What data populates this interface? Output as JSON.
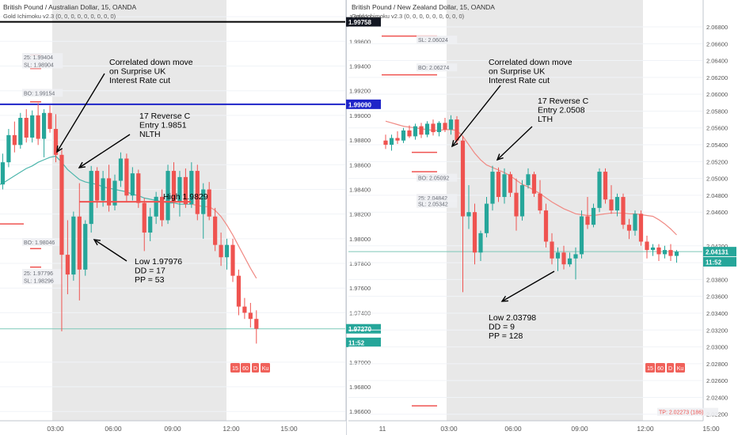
{
  "colors": {
    "up": "#26a69a",
    "down": "#ef5350",
    "session_shade": "#e0e0e0",
    "ma_left": "#4db6ac",
    "ma_right": "#f08a84",
    "blue_line": "#1e24c8",
    "black_line": "#000000",
    "price_line": "#7dc8b8",
    "grid": "#f0f3f7",
    "axis_text": "#555555",
    "annotation": "#000000",
    "tv_badge": "#f0615a"
  },
  "tv_buttons": [
    "15",
    "60",
    "D",
    "Ku"
  ],
  "chart_data": [
    {
      "type": "candlestick",
      "title": "British Pound / Australian Dollar, 15, OANDA",
      "indicator_label": "Gold Ichimoku v2.3 (0, 0, 0, 0, 0, 0, 0, 0, 0)",
      "x_ticks": [
        "03:00",
        "06:00",
        "09:00",
        "12:00",
        "15:00"
      ],
      "y_ticks": [
        "1.96600",
        "1.96800",
        "1.97000",
        "1.97400",
        "1.97600",
        "1.97800",
        "1.98000",
        "1.98200",
        "1.98400",
        "1.98600",
        "1.98800",
        "1.99000",
        "1.99200",
        "1.99400",
        "1.99600",
        "1.99800"
      ],
      "ylim": [
        1.9655,
        1.9982
      ],
      "price_tags": [
        {
          "value": 1.99758,
          "label": "1.99758",
          "style": "dark"
        },
        {
          "value": 1.9909,
          "label": "1.99090",
          "style": "blue"
        },
        {
          "value": 1.9727,
          "label": "1.97270",
          "style": "green"
        },
        {
          "value": 1.9716,
          "label": "11:52",
          "style": "green"
        }
      ],
      "hlines": [
        {
          "value": 1.99758,
          "style": "black"
        },
        {
          "value": 1.9909,
          "style": "blue"
        },
        {
          "value": 1.9727,
          "style": "price"
        }
      ],
      "small_labels": [
        {
          "text": "25: 1.99404",
          "value": 1.9946
        },
        {
          "text": "SL: 1.98904",
          "value": 1.994
        },
        {
          "text": "BO: 1.99154",
          "value": 1.9917
        },
        {
          "text": "BO: 1.98046",
          "value": 1.9796
        },
        {
          "text": "25: 1.97796",
          "value": 1.9771
        },
        {
          "text": "SL: 1.98296",
          "value": 1.9765
        }
      ],
      "red_ticks": [
        1.9949,
        1.9938,
        1.9911,
        1.9812,
        1.9792,
        1.9777
      ],
      "entry_line": {
        "value": 1.983,
        "x_start": 18,
        "x_end": 42
      },
      "annotations": [
        "Correlated down move\non Surprise UK\nInterest Rate cut",
        "17 Reverse C\nEntry 1.9851\nNLTH",
        "High 1.9829",
        "Low 1.97976\nDD = 17\nPP = 53"
      ],
      "candles": [
        [
          1.9852,
          1.9858,
          1.9835,
          1.9844
        ],
        [
          1.9844,
          1.9869,
          1.984,
          1.9862
        ],
        [
          1.9862,
          1.9889,
          1.9858,
          1.9884
        ],
        [
          1.9884,
          1.9895,
          1.987,
          1.9876
        ],
        [
          1.9876,
          1.9902,
          1.9873,
          1.9898
        ],
        [
          1.9898,
          1.9905,
          1.9878,
          1.9882
        ],
        [
          1.9882,
          1.9904,
          1.9878,
          1.99
        ],
        [
          1.99,
          1.991,
          1.9876,
          1.9881
        ],
        [
          1.9881,
          1.9905,
          1.9866,
          1.9902
        ],
        [
          1.9902,
          1.9908,
          1.9886,
          1.9889
        ],
        [
          1.9889,
          1.9901,
          1.9862,
          1.9868
        ],
        [
          1.9868,
          1.9872,
          1.9725,
          1.9787
        ],
        [
          1.9787,
          1.9815,
          1.9755,
          1.9771
        ],
        [
          1.9771,
          1.9822,
          1.9766,
          1.9818
        ],
        [
          1.9818,
          1.9845,
          1.975,
          1.9775
        ],
        [
          1.9775,
          1.9815,
          1.977,
          1.9812
        ],
        [
          1.9812,
          1.9859,
          1.9805,
          1.9855
        ],
        [
          1.9855,
          1.9858,
          1.9825,
          1.9831
        ],
        [
          1.9831,
          1.9855,
          1.9826,
          1.9849
        ],
        [
          1.9849,
          1.986,
          1.9822,
          1.9827
        ],
        [
          1.9827,
          1.9852,
          1.9823,
          1.9847
        ],
        [
          1.9847,
          1.987,
          1.9842,
          1.9865
        ],
        [
          1.9865,
          1.9869,
          1.983,
          1.9835
        ],
        [
          1.9835,
          1.9858,
          1.9831,
          1.9853
        ],
        [
          1.9853,
          1.9856,
          1.9825,
          1.9829
        ],
        [
          1.9829,
          1.9833,
          1.979,
          1.9805
        ],
        [
          1.9805,
          1.9825,
          1.9798,
          1.9818
        ],
        [
          1.9818,
          1.9838,
          1.9812,
          1.9834
        ],
        [
          1.9834,
          1.984,
          1.981,
          1.9815
        ],
        [
          1.9815,
          1.986,
          1.9812,
          1.9855
        ],
        [
          1.9855,
          1.9862,
          1.9825,
          1.983
        ],
        [
          1.983,
          1.9855,
          1.9818,
          1.985
        ],
        [
          1.985,
          1.9857,
          1.9825,
          1.9828
        ],
        [
          1.9828,
          1.9862,
          1.9825,
          1.9855
        ],
        [
          1.9855,
          1.986,
          1.9815,
          1.982
        ],
        [
          1.982,
          1.9845,
          1.98,
          1.984
        ],
        [
          1.984,
          1.9846,
          1.9815,
          1.9818
        ],
        [
          1.9818,
          1.9825,
          1.979,
          1.9795
        ],
        [
          1.9795,
          1.9805,
          1.9778,
          1.9785
        ],
        [
          1.9785,
          1.98,
          1.9775,
          1.9795
        ],
        [
          1.9795,
          1.98,
          1.9765,
          1.977
        ],
        [
          1.977,
          1.9775,
          1.9738,
          1.9745
        ],
        [
          1.9745,
          1.9752,
          1.9735,
          1.974
        ],
        [
          1.974,
          1.9748,
          1.9728,
          1.9735
        ],
        [
          1.9735,
          1.9742,
          1.9715,
          1.9727
        ]
      ],
      "ma": [
        1.9843,
        1.9845,
        1.9848,
        1.9851,
        1.9854,
        1.9857,
        1.9859,
        1.9862,
        1.9864,
        1.9866,
        1.9867,
        1.9862,
        1.9856,
        1.9852,
        1.9848,
        1.9846,
        1.9845,
        1.9844,
        1.9842,
        1.9841,
        1.984,
        1.9839,
        1.9838,
        1.9836,
        1.9835,
        1.9833,
        1.9832,
        1.9831,
        1.983,
        1.9829,
        1.9829,
        1.9828,
        1.9828,
        1.9828,
        1.9827,
        1.9826,
        1.9826,
        1.9823,
        1.9818,
        1.9811,
        1.9803,
        1.9794,
        1.9785,
        1.9776,
        1.9768
      ]
    },
    {
      "type": "candlestick",
      "title": "British Pound / New Zealand Dollar, 15, OANDA",
      "indicator_label": "Gold Ichimoku v2.3 (0, 0, 0, 0, 0, 0, 0, 0, 0)",
      "x_ticks": [
        "11",
        "03:00",
        "06:00",
        "09:00",
        "12:00",
        "15:00"
      ],
      "y_ticks": [
        "2.02200",
        "2.02400",
        "2.02600",
        "2.02800",
        "2.03000",
        "2.03200",
        "2.03400",
        "2.03600",
        "2.03800",
        "2.04000",
        "2.04200",
        "2.04600",
        "2.04800",
        "2.05000",
        "2.05200",
        "2.05400",
        "2.05600",
        "2.05800",
        "2.06000",
        "2.06200",
        "2.06400",
        "2.06600",
        "2.06800"
      ],
      "ylim": [
        2.0216,
        2.0695
      ],
      "price_tags": [
        {
          "value": 2.04131,
          "label": "2.04131",
          "style": "green"
        },
        {
          "value": 2.0401,
          "label": "11:52",
          "style": "green"
        }
      ],
      "hlines": [
        {
          "value": 2.04131,
          "style": "price"
        }
      ],
      "small_labels": [
        {
          "text": "SL: 2.06024",
          "value": 2.0663
        },
        {
          "text": "BO: 2.06274",
          "value": 2.063
        },
        {
          "text": "BO: 2.05092",
          "value": 2.0499
        },
        {
          "text": "25: 2.04842",
          "value": 2.0475
        },
        {
          "text": "SL: 2.05342",
          "value": 2.0468
        },
        {
          "text": "TP: 2.02273 (186)",
          "value": 2.0221
        }
      ],
      "red_ticks": [
        2.0669,
        2.0623,
        2.0531,
        2.0508,
        2.023
      ],
      "annotations": [
        "Correlated down move\non Surprise UK\nInterest Rate cut",
        "17 Reverse C\nEntry 2.0508\nLTH",
        "Low 2.03798\nDD = 9\nPP = 128"
      ],
      "candles": [
        [
          2.0545,
          2.0552,
          2.0535,
          2.054
        ],
        [
          2.054,
          2.0552,
          2.0533,
          2.0548
        ],
        [
          2.0548,
          2.0556,
          2.0541,
          2.0545
        ],
        [
          2.0545,
          2.056,
          2.0542,
          2.0557
        ],
        [
          2.0557,
          2.0563,
          2.0548,
          2.055
        ],
        [
          2.055,
          2.0565,
          2.0546,
          2.0562
        ],
        [
          2.0562,
          2.0566,
          2.0548,
          2.0552
        ],
        [
          2.0552,
          2.0568,
          2.0549,
          2.0565
        ],
        [
          2.0565,
          2.057,
          2.0551,
          2.0555
        ],
        [
          2.0555,
          2.0568,
          2.055,
          2.0566
        ],
        [
          2.0566,
          2.0572,
          2.0555,
          2.0558
        ],
        [
          2.0558,
          2.0575,
          2.0552,
          2.057
        ],
        [
          2.057,
          2.0574,
          2.054,
          2.0545
        ],
        [
          2.0545,
          2.055,
          2.0365,
          2.0455
        ],
        [
          2.0455,
          2.0492,
          2.044,
          2.046
        ],
        [
          2.046,
          2.047,
          2.0398,
          2.0412
        ],
        [
          2.0412,
          2.0438,
          2.0402,
          2.0435
        ],
        [
          2.0435,
          2.0478,
          2.043,
          2.047
        ],
        [
          2.047,
          2.0515,
          2.0462,
          2.0508
        ],
        [
          2.0508,
          2.0513,
          2.0472,
          2.0478
        ],
        [
          2.0478,
          2.0512,
          2.047,
          2.0505
        ],
        [
          2.0505,
          2.0508,
          2.0478,
          2.0483
        ],
        [
          2.0483,
          2.05,
          2.0438,
          2.0455
        ],
        [
          2.0455,
          2.0498,
          2.045,
          2.0492
        ],
        [
          2.0492,
          2.0512,
          2.0488,
          2.0505
        ],
        [
          2.0505,
          2.0508,
          2.0478,
          2.0482
        ],
        [
          2.0482,
          2.0498,
          2.0458,
          2.0462
        ],
        [
          2.0462,
          2.047,
          2.0418,
          2.0425
        ],
        [
          2.0425,
          2.0435,
          2.0398,
          2.0405
        ],
        [
          2.0405,
          2.0418,
          2.039,
          2.0412
        ],
        [
          2.0412,
          2.042,
          2.0392,
          2.0398
        ],
        [
          2.0398,
          2.0412,
          2.0395,
          2.0405
        ],
        [
          2.0405,
          2.0418,
          2.038,
          2.041
        ],
        [
          2.041,
          2.0462,
          2.0405,
          2.0455
        ],
        [
          2.0455,
          2.0478,
          2.044,
          2.0445
        ],
        [
          2.0445,
          2.047,
          2.0442,
          2.0465
        ],
        [
          2.0465,
          2.0512,
          2.046,
          2.0508
        ],
        [
          2.0508,
          2.0512,
          2.047,
          2.0475
        ],
        [
          2.0475,
          2.0492,
          2.0458,
          2.0462
        ],
        [
          2.0462,
          2.0482,
          2.0455,
          2.0478
        ],
        [
          2.0478,
          2.0482,
          2.044,
          2.0445
        ],
        [
          2.0445,
          2.0452,
          2.0428,
          2.0438
        ],
        [
          2.0438,
          2.0462,
          2.0432,
          2.0458
        ],
        [
          2.0458,
          2.0462,
          2.042,
          2.0425
        ],
        [
          2.0425,
          2.0432,
          2.0405,
          2.0415
        ],
        [
          2.0415,
          2.0422,
          2.0408,
          2.0418
        ],
        [
          2.0418,
          2.0422,
          2.0402,
          2.041
        ],
        [
          2.041,
          2.042,
          2.0405,
          2.0415
        ],
        [
          2.0415,
          2.0422,
          2.0402,
          2.0408
        ],
        [
          2.0408,
          2.0415,
          2.04,
          2.0413
        ]
      ],
      "ma": [
        2.0568,
        2.0566,
        2.0564,
        2.0562,
        2.0561,
        2.056,
        2.0559,
        2.0558,
        2.0557,
        2.0557,
        2.0558,
        2.0558,
        2.0557,
        2.055,
        2.054,
        2.053,
        2.0522,
        2.0516,
        2.0513,
        2.051,
        2.0507,
        2.0503,
        2.0498,
        2.0493,
        2.049,
        2.0486,
        2.0482,
        2.0477,
        2.0472,
        2.0468,
        2.0464,
        2.0461,
        2.0458,
        2.0457,
        2.0456,
        2.0456,
        2.0457,
        2.0458,
        2.0459,
        2.0459,
        2.0459,
        2.0458,
        2.0458,
        2.0457,
        2.0456,
        2.0455,
        2.0451,
        2.0446,
        2.044,
        2.0433
      ]
    }
  ]
}
